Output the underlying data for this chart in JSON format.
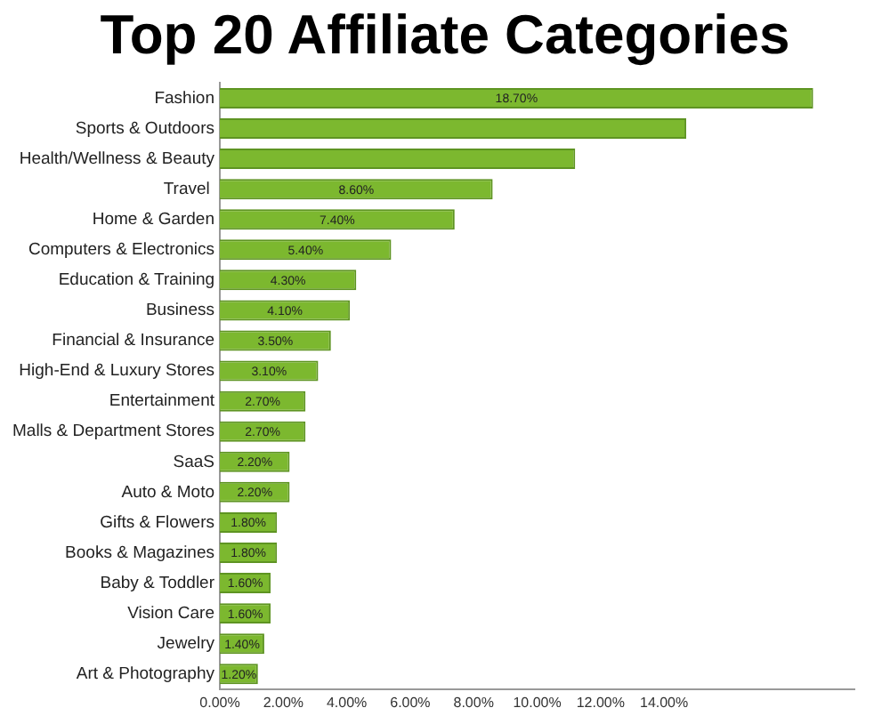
{
  "chart_data": {
    "type": "bar",
    "orientation": "horizontal",
    "title": "Top 20 Affiliate Categories",
    "categories": [
      "Fashion",
      "Sports & Outdoors",
      "Health/Wellness & Beauty",
      "Travel ",
      "Home & Garden",
      "Computers & Electronics",
      "Education & Training",
      "Business",
      "Financial & Insurance",
      "High-End & Luxury Stores",
      "Entertainment",
      "Malls & Department Stores",
      "SaaS",
      "Auto & Moto",
      "Gifts & Flowers",
      "Books & Magazines",
      "Baby & Toddler",
      "Vision Care",
      "Jewelry",
      "Art & Photography"
    ],
    "values": [
      18.7,
      14.7,
      11.2,
      8.6,
      7.4,
      5.4,
      4.3,
      4.1,
      3.5,
      3.1,
      2.7,
      2.7,
      2.2,
      2.2,
      1.8,
      1.8,
      1.6,
      1.6,
      1.4,
      1.2
    ],
    "value_labels": [
      "18.70%",
      null,
      null,
      "8.60%",
      "7.40%",
      "5.40%",
      "4.30%",
      "4.10%",
      "3.50%",
      "3.10%",
      "2.70%",
      "2.70%",
      "2.20%",
      "2.20%",
      "1.80%",
      "1.80%",
      "1.60%",
      "1.60%",
      "1.40%",
      "1.20%"
    ],
    "color": "#7cb82f",
    "xlim": [
      0,
      20
    ],
    "xticks": [
      {
        "value": 0,
        "label": "0.00%"
      },
      {
        "value": 2,
        "label": "2.00%"
      },
      {
        "value": 4,
        "label": "4.00%"
      },
      {
        "value": 6,
        "label": "6.00%"
      },
      {
        "value": 8,
        "label": "8.00%"
      },
      {
        "value": 10,
        "label": "10.00%"
      },
      {
        "value": 12,
        "label": "12.00%"
      },
      {
        "value": 14,
        "label": "14.00%"
      }
    ],
    "grid": false,
    "legend": false
  }
}
